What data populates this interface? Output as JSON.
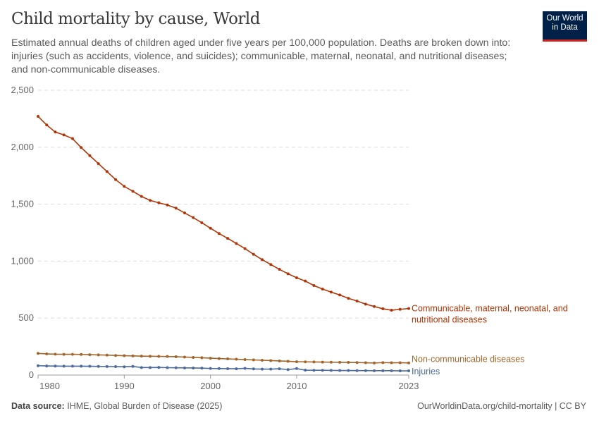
{
  "header": {
    "title": "Child mortality by cause, World",
    "subtitle": "Estimated annual deaths of children aged under five years per 100,000 population. Deaths are broken down into: injuries (such as accidents, violence, and suicides); communicable, maternal, neonatal, and nutritional diseases; and non-communicable diseases.",
    "logo_line1": "Our World",
    "logo_line2": "in Data"
  },
  "footer": {
    "source_label": "Data source:",
    "source_text": "IHME, Global Burden of Disease (2025)",
    "credit": "OurWorldinData.org/child-mortality | CC BY"
  },
  "chart_data": {
    "type": "line",
    "title": "Child mortality by cause, World",
    "xlabel": "",
    "ylabel": "",
    "xlim": [
      1980,
      2023
    ],
    "ylim": [
      0,
      2500
    ],
    "grid": "horizontal dashed",
    "legend": "right, inline labels at line ends",
    "x_ticks": [
      "1980",
      "1990",
      "2000",
      "2010",
      "2023"
    ],
    "y_ticks": [
      "0",
      "500",
      "1,000",
      "1,500",
      "2,000",
      "2,500"
    ],
    "x": [
      1980,
      1981,
      1982,
      1983,
      1984,
      1985,
      1986,
      1987,
      1988,
      1989,
      1990,
      1991,
      1992,
      1993,
      1994,
      1995,
      1996,
      1997,
      1998,
      1999,
      2000,
      2001,
      2002,
      2003,
      2004,
      2005,
      2006,
      2007,
      2008,
      2009,
      2010,
      2011,
      2012,
      2013,
      2014,
      2015,
      2016,
      2017,
      2018,
      2019,
      2020,
      2021,
      2022,
      2023
    ],
    "series": [
      {
        "name": "Communicable, maternal, neonatal, and nutritional diseases",
        "label_lines": [
          "Communicable, maternal, neonatal, and",
          "nutritional diseases"
        ],
        "color": "#b13507",
        "values": [
          2271,
          2195,
          2133,
          2108,
          2075,
          1997,
          1926,
          1856,
          1786,
          1716,
          1656,
          1613,
          1568,
          1533,
          1512,
          1493,
          1465,
          1423,
          1382,
          1337,
          1289,
          1242,
          1200,
          1155,
          1110,
          1060,
          1013,
          970,
          928,
          889,
          854,
          825,
          786,
          755,
          728,
          703,
          674,
          650,
          623,
          602,
          582,
          569,
          577,
          584
        ]
      },
      {
        "name": "Non-communicable diseases",
        "label_lines": [
          "Non-communicable diseases"
        ],
        "color": "#a2662b",
        "values": [
          190,
          186,
          183,
          182,
          182,
          181,
          179,
          177,
          175,
          172,
          170,
          168,
          166,
          165,
          164,
          163,
          161,
          158,
          155,
          152,
          148,
          145,
          142,
          139,
          136,
          133,
          130,
          127,
          124,
          121,
          117,
          116,
          115,
          114,
          113,
          112,
          111,
          110,
          108,
          106,
          109,
          108,
          108,
          107
        ]
      },
      {
        "name": "Injuries",
        "label_lines": [
          "Injuries"
        ],
        "color": "#4c6a9c",
        "values": [
          82,
          80,
          79,
          78,
          78,
          78,
          77,
          76,
          75,
          74,
          73,
          76,
          66,
          66,
          67,
          65,
          64,
          63,
          62,
          61,
          58,
          57,
          56,
          55,
          59,
          54,
          52,
          52,
          55,
          48,
          57,
          43,
          42,
          42,
          41,
          40,
          40,
          39,
          39,
          38,
          38,
          38,
          37,
          37
        ]
      }
    ]
  }
}
